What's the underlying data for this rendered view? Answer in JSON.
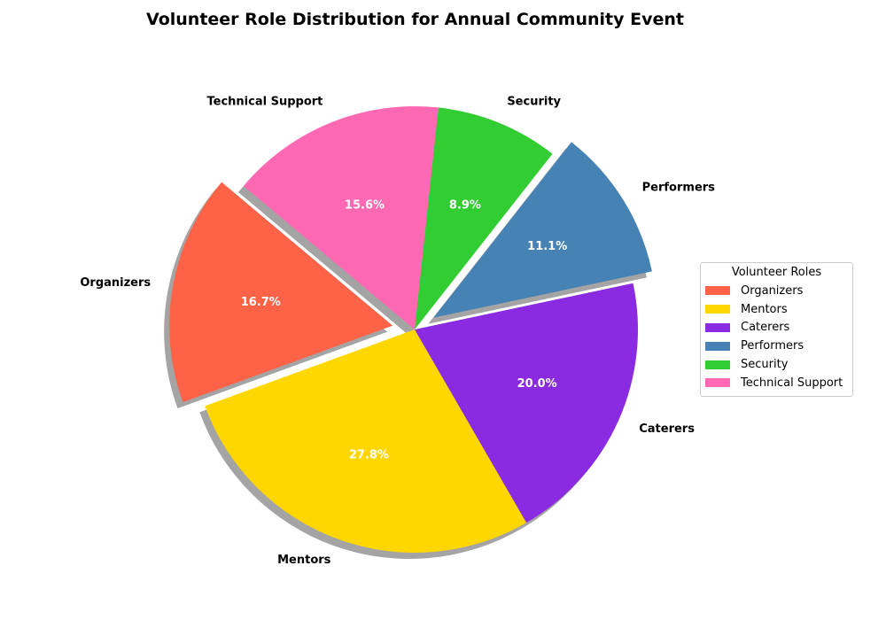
{
  "chart_data": {
    "type": "pie",
    "title": "Volunteer Role Distribution for Annual Community Event",
    "categories": [
      "Organizers",
      "Mentors",
      "Caterers",
      "Performers",
      "Security",
      "Technical Support"
    ],
    "values": [
      16.7,
      27.8,
      20.0,
      11.1,
      8.9,
      15.6
    ],
    "percent_labels": [
      "16.7%",
      "27.8%",
      "20.0%",
      "11.1%",
      "8.9%",
      "15.6%"
    ],
    "colors": [
      "#FF6347",
      "#FFD700",
      "#8A2BE2",
      "#4682B4",
      "#32CD32",
      "#FF69B4"
    ],
    "exploded": [
      true,
      false,
      false,
      true,
      false,
      false
    ],
    "shadow": true,
    "start_angle_deg": 140,
    "legend": {
      "title": "Volunteer Roles",
      "placement": "right"
    }
  }
}
